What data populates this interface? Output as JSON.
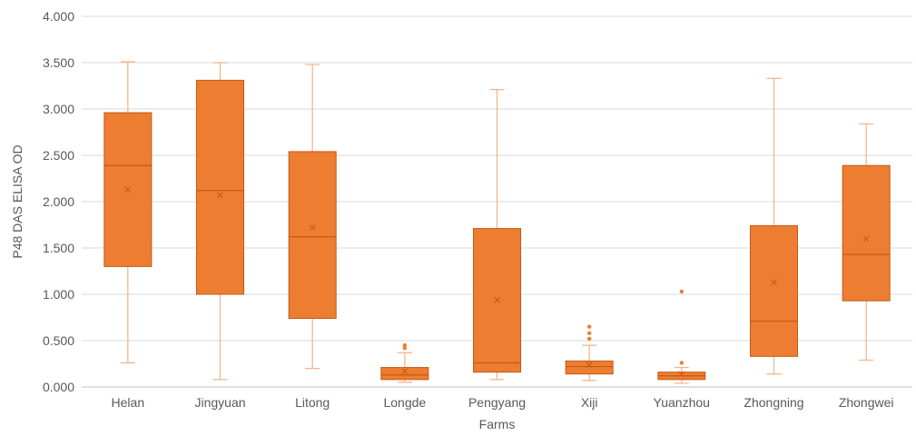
{
  "chart_data": {
    "type": "box",
    "title": "",
    "xlabel": "Farms",
    "ylabel": "P48 DAS ELISA OD",
    "ylim": [
      0,
      4
    ],
    "yticks": [
      0,
      0.5,
      1,
      1.5,
      2,
      2.5,
      3,
      3.5,
      4
    ],
    "ytick_labels": [
      "0.000",
      "0.500",
      "1.000",
      "1.500",
      "2.000",
      "2.500",
      "3.000",
      "3.500",
      "4.000"
    ],
    "grid": "horizontal",
    "categories": [
      "Helan",
      "Jingyuan",
      "Litong",
      "Longde",
      "Pengyang",
      "Xiji",
      "Yuanzhou",
      "Zhongning",
      "Zhongwei"
    ],
    "boxes": [
      {
        "category": "Helan",
        "min": 0.26,
        "q1": 1.3,
        "median": 2.39,
        "q3": 2.96,
        "max": 3.51,
        "mean": 2.13,
        "outliers": []
      },
      {
        "category": "Jingyuan",
        "min": 0.08,
        "q1": 1.0,
        "median": 2.12,
        "q3": 3.31,
        "max": 3.5,
        "mean": 2.07,
        "outliers": []
      },
      {
        "category": "Litong",
        "min": 0.2,
        "q1": 0.74,
        "median": 1.62,
        "q3": 2.54,
        "max": 3.48,
        "mean": 1.72,
        "outliers": []
      },
      {
        "category": "Longde",
        "min": 0.05,
        "q1": 0.08,
        "median": 0.13,
        "q3": 0.21,
        "max": 0.37,
        "mean": 0.17,
        "outliers": [
          0.42,
          0.45
        ]
      },
      {
        "category": "Pengyang",
        "min": 0.08,
        "q1": 0.16,
        "median": 0.26,
        "q3": 1.71,
        "max": 3.21,
        "mean": 0.94,
        "outliers": []
      },
      {
        "category": "Xiji",
        "min": 0.07,
        "q1": 0.14,
        "median": 0.22,
        "q3": 0.28,
        "max": 0.45,
        "mean": 0.24,
        "outliers": [
          0.52,
          0.58,
          0.65
        ]
      },
      {
        "category": "Yuanzhou",
        "min": 0.04,
        "q1": 0.08,
        "median": 0.12,
        "q3": 0.16,
        "max": 0.21,
        "mean": 0.14,
        "outliers": [
          0.26,
          1.03
        ]
      },
      {
        "category": "Zhongning",
        "min": 0.14,
        "q1": 0.33,
        "median": 0.71,
        "q3": 1.74,
        "max": 3.33,
        "mean": 1.13,
        "outliers": []
      },
      {
        "category": "Zhongwei",
        "min": 0.29,
        "q1": 0.93,
        "median": 1.43,
        "q3": 2.39,
        "max": 2.84,
        "mean": 1.6,
        "outliers": []
      }
    ],
    "colors": {
      "box_fill": "#ed7d31",
      "box_stroke": "#c55a11",
      "whisker": "#f4b183",
      "grid": "#d9d9d9"
    }
  }
}
